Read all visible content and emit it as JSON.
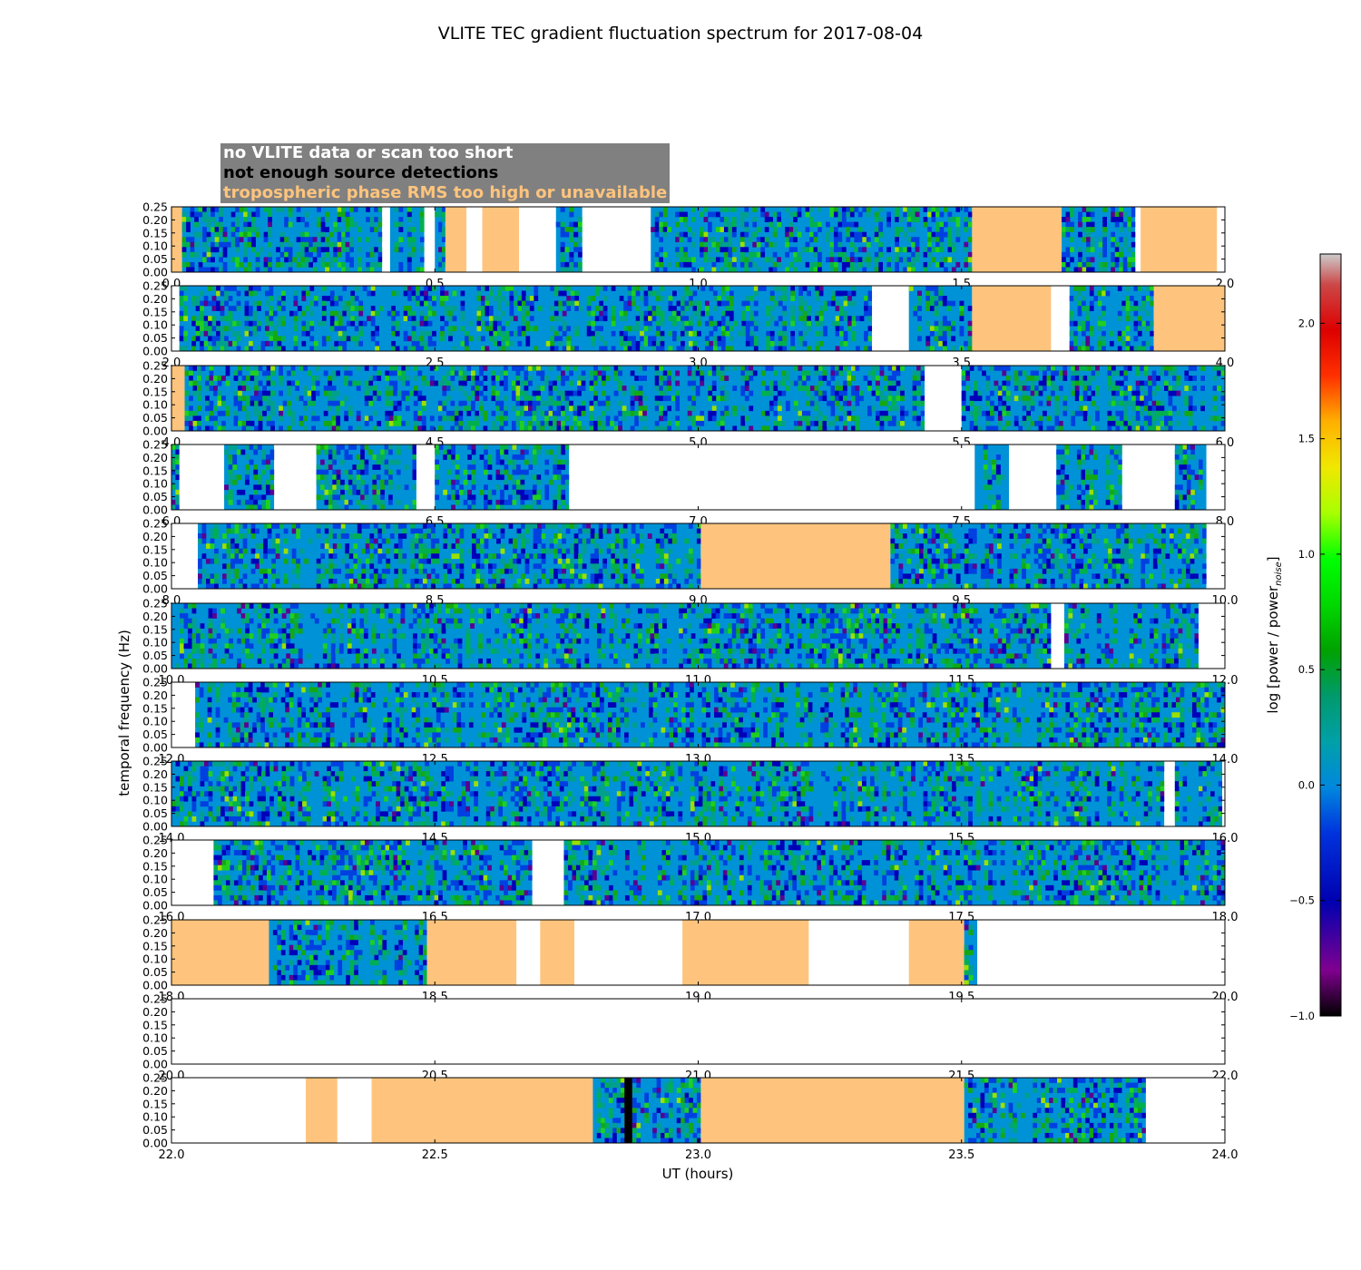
{
  "chart_data": {
    "type": "heatmap",
    "title": "VLITE TEC gradient fluctuation spectrum for 2017-08-04",
    "xlabel": "UT (hours)",
    "ylabel": "temporal frequency (Hz)",
    "colorbar_label": "log [power / power",
    "colorbar_label_sub": "noise",
    "colorbar_ticks": [
      "−1.0",
      "−0.5",
      "0.0",
      "0.5",
      "1.0",
      "1.5",
      "2.0"
    ],
    "colorbar_values": [
      -1.0,
      -0.5,
      0.0,
      0.5,
      1.0,
      1.5,
      2.0
    ],
    "colorbar_range": [
      -1.0,
      2.3
    ],
    "colormap": "nipy_spectral",
    "yticks": [
      "0.00",
      "0.05",
      "0.10",
      "0.15",
      "0.20",
      "0.25"
    ],
    "ylim": [
      0,
      0.25
    ],
    "legend": [
      {
        "label": "no VLITE data or scan too short",
        "color": "#ffffff"
      },
      {
        "label": "not enough source detections",
        "color": "#000000"
      },
      {
        "label": "tropospheric phase RMS too high or unavailable",
        "color": "#fec47d"
      }
    ],
    "panels": [
      {
        "xlim": [
          0,
          2
        ],
        "xticks": [
          "0.0",
          "0.5",
          "1.0",
          "1.5",
          "2.0"
        ],
        "segments": [
          [
            0.0,
            0.02,
            "trop"
          ],
          [
            0.02,
            0.4,
            "data"
          ],
          [
            0.4,
            0.415,
            "nodata"
          ],
          [
            0.415,
            0.48,
            "data"
          ],
          [
            0.48,
            0.5,
            "nodata"
          ],
          [
            0.5,
            0.52,
            "data"
          ],
          [
            0.52,
            0.56,
            "trop"
          ],
          [
            0.56,
            0.59,
            "nodata"
          ],
          [
            0.59,
            0.66,
            "trop"
          ],
          [
            0.66,
            0.73,
            "nodata"
          ],
          [
            0.73,
            0.78,
            "data"
          ],
          [
            0.78,
            0.91,
            "nodata"
          ],
          [
            0.91,
            1.52,
            "data"
          ],
          [
            1.52,
            1.69,
            "trop"
          ],
          [
            1.69,
            1.83,
            "data"
          ],
          [
            1.83,
            1.84,
            "nodata"
          ],
          [
            1.84,
            1.985,
            "trop"
          ],
          [
            1.985,
            2.0,
            "nodata"
          ]
        ]
      },
      {
        "xlim": [
          2,
          4
        ],
        "xticks": [
          "2.0",
          "2.5",
          "3.0",
          "3.5",
          "4.0"
        ],
        "segments": [
          [
            2.0,
            2.015,
            "nodata"
          ],
          [
            2.015,
            3.33,
            "data"
          ],
          [
            3.33,
            3.4,
            "nodata"
          ],
          [
            3.4,
            3.52,
            "data"
          ],
          [
            3.52,
            3.67,
            "trop"
          ],
          [
            3.67,
            3.705,
            "nodata"
          ],
          [
            3.705,
            3.865,
            "data"
          ],
          [
            3.865,
            4.0,
            "trop"
          ]
        ]
      },
      {
        "xlim": [
          4,
          6
        ],
        "xticks": [
          "4.0",
          "4.5",
          "5.0",
          "5.5",
          "6.0"
        ],
        "segments": [
          [
            4.0,
            4.025,
            "trop"
          ],
          [
            4.025,
            5.43,
            "data"
          ],
          [
            5.43,
            5.5,
            "nodata"
          ],
          [
            5.5,
            6.0,
            "data"
          ]
        ]
      },
      {
        "xlim": [
          6,
          8
        ],
        "xticks": [
          "6.0",
          "6.5",
          "7.0",
          "7.5",
          "8.0"
        ],
        "segments": [
          [
            6.0,
            6.015,
            "data"
          ],
          [
            6.015,
            6.1,
            "nodata"
          ],
          [
            6.1,
            6.195,
            "data"
          ],
          [
            6.195,
            6.275,
            "nodata"
          ],
          [
            6.275,
            6.465,
            "data"
          ],
          [
            6.465,
            6.5,
            "nodata"
          ],
          [
            6.5,
            6.755,
            "data"
          ],
          [
            6.755,
            7.525,
            "nodata"
          ],
          [
            7.525,
            7.59,
            "data"
          ],
          [
            7.59,
            7.68,
            "nodata"
          ],
          [
            7.68,
            7.805,
            "data"
          ],
          [
            7.805,
            7.905,
            "nodata"
          ],
          [
            7.905,
            7.965,
            "data"
          ],
          [
            7.965,
            8.0,
            "nodata"
          ]
        ]
      },
      {
        "xlim": [
          8,
          10
        ],
        "xticks": [
          "8.0",
          "8.5",
          "9.0",
          "9.5",
          "10.0"
        ],
        "segments": [
          [
            8.0,
            8.05,
            "nodata"
          ],
          [
            8.05,
            9.005,
            "data"
          ],
          [
            9.005,
            9.365,
            "trop"
          ],
          [
            9.365,
            9.965,
            "data"
          ],
          [
            9.965,
            10.0,
            "nodata"
          ]
        ]
      },
      {
        "xlim": [
          10,
          12
        ],
        "xticks": [
          "10.0",
          "10.5",
          "11.0",
          "11.5",
          "12.0"
        ],
        "segments": [
          [
            10.0,
            11.67,
            "data"
          ],
          [
            11.67,
            11.695,
            "nodata"
          ],
          [
            11.695,
            11.95,
            "data"
          ],
          [
            11.95,
            12.0,
            "nodata"
          ]
        ]
      },
      {
        "xlim": [
          12,
          14
        ],
        "xticks": [
          "12.0",
          "12.5",
          "13.0",
          "13.5",
          "14.0"
        ],
        "segments": [
          [
            12.0,
            12.045,
            "nodata"
          ],
          [
            12.045,
            14.0,
            "data"
          ]
        ]
      },
      {
        "xlim": [
          14,
          16
        ],
        "xticks": [
          "14.0",
          "14.5",
          "15.0",
          "15.5",
          "16.0"
        ],
        "segments": [
          [
            14.0,
            15.885,
            "data"
          ],
          [
            15.885,
            15.905,
            "nodata"
          ],
          [
            15.905,
            15.995,
            "data"
          ],
          [
            15.995,
            16.0,
            "nodata"
          ]
        ]
      },
      {
        "xlim": [
          16,
          18
        ],
        "xticks": [
          "16.0",
          "16.5",
          "17.0",
          "17.5",
          "18.0"
        ],
        "segments": [
          [
            16.0,
            16.08,
            "nodata"
          ],
          [
            16.08,
            16.685,
            "data"
          ],
          [
            16.685,
            16.745,
            "nodata"
          ],
          [
            16.745,
            18.0,
            "data"
          ]
        ]
      },
      {
        "xlim": [
          18,
          20
        ],
        "xticks": [
          "18.0",
          "18.5",
          "19.0",
          "19.5",
          "20.0"
        ],
        "segments": [
          [
            18.0,
            18.185,
            "trop"
          ],
          [
            18.185,
            18.485,
            "data"
          ],
          [
            18.485,
            18.655,
            "trop"
          ],
          [
            18.655,
            18.7,
            "nodata"
          ],
          [
            18.7,
            18.765,
            "trop"
          ],
          [
            18.765,
            18.97,
            "nodata"
          ],
          [
            18.97,
            19.21,
            "trop"
          ],
          [
            19.21,
            19.4,
            "nodata"
          ],
          [
            19.4,
            19.505,
            "trop"
          ],
          [
            19.505,
            19.53,
            "data"
          ],
          [
            19.53,
            20.0,
            "nodata"
          ]
        ]
      },
      {
        "xlim": [
          20,
          22
        ],
        "xticks": [
          "20.0",
          "20.5",
          "21.0",
          "21.5",
          "22.0"
        ],
        "segments": [
          [
            20.0,
            22.0,
            "nodata"
          ]
        ]
      },
      {
        "xlim": [
          22,
          24
        ],
        "xticks": [
          "22.0",
          "22.5",
          "23.0",
          "23.5",
          "24.0"
        ],
        "segments": [
          [
            22.0,
            22.255,
            "nodata"
          ],
          [
            22.255,
            22.315,
            "trop"
          ],
          [
            22.315,
            22.38,
            "nodata"
          ],
          [
            22.38,
            22.8,
            "trop"
          ],
          [
            22.8,
            22.86,
            "data"
          ],
          [
            22.86,
            22.875,
            "notenough"
          ],
          [
            22.875,
            23.005,
            "data"
          ],
          [
            23.005,
            23.505,
            "trop"
          ],
          [
            23.505,
            23.85,
            "data"
          ],
          [
            23.85,
            24.0,
            "nodata"
          ]
        ]
      }
    ]
  }
}
